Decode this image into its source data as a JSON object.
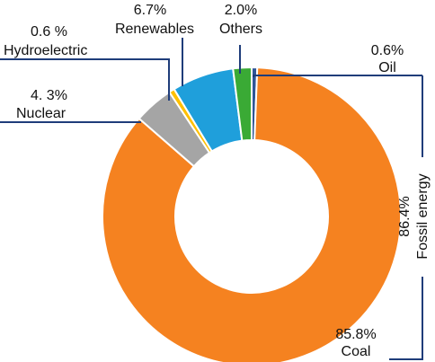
{
  "chart_data": {
    "type": "pie",
    "style": "donut",
    "slices": [
      {
        "label": "Oil",
        "value": 0.6,
        "value_text": "0.6%",
        "color": "#2f5597"
      },
      {
        "label": "Coal",
        "value": 85.8,
        "value_text": "85.8%",
        "color": "#f58220"
      },
      {
        "label": "Nuclear",
        "value": 4.3,
        "value_text": "4. 3%",
        "color": "#a5a5a5"
      },
      {
        "label": "Hydroelectric",
        "value": 0.6,
        "value_text": "0.6 %",
        "color": "#ffc000"
      },
      {
        "label": "Renewables",
        "value": 6.7,
        "value_text": "6.7%",
        "color": "#1f9fdb"
      },
      {
        "label": "Others",
        "value": 2.0,
        "value_text": "2.0%",
        "color": "#3aaa35"
      }
    ],
    "group_annotation": {
      "label": "Fossil energy",
      "value_text": "86.4%"
    }
  }
}
